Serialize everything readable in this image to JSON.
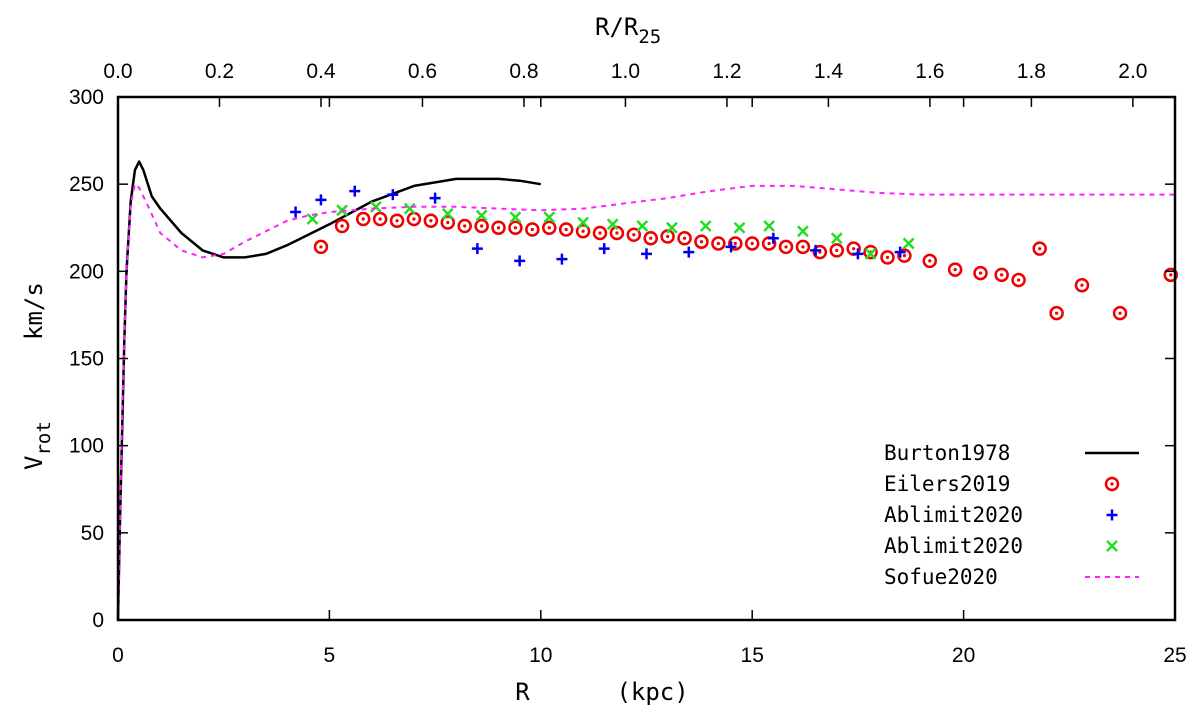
{
  "chart_data": {
    "type": "scatter",
    "title": "",
    "xlabel": "R      (kpc)",
    "ylabel_main": "V",
    "ylabel_sub": "rot",
    "ylabel_units": "km/s",
    "top_xlabel_main": "R/R",
    "top_xlabel_sub": "25",
    "xlim": [
      0,
      25
    ],
    "ylim": [
      0,
      300
    ],
    "top_xlim": [
      0,
      2.083
    ],
    "xticks": [
      0,
      5,
      10,
      15,
      20,
      25
    ],
    "yticks": [
      0,
      50,
      100,
      150,
      200,
      250,
      300
    ],
    "top_xticks": [
      "0.0",
      "0.2",
      "0.4",
      "0.6",
      "0.8",
      "1.0",
      "1.2",
      "1.4",
      "1.6",
      "1.8",
      "2.0"
    ],
    "grid": false,
    "legend_position": "bottom-right",
    "series": [
      {
        "name": "Burton1978",
        "style": "line",
        "color": "#000000",
        "x": [
          0.0,
          0.05,
          0.1,
          0.15,
          0.2,
          0.3,
          0.4,
          0.5,
          0.6,
          0.8,
          1.0,
          1.5,
          2.0,
          2.5,
          3.0,
          3.5,
          4.0,
          5.0,
          6.0,
          7.0,
          8.0,
          8.5,
          9.0,
          9.5,
          10.0
        ],
        "y": [
          0,
          60,
          110,
          160,
          200,
          240,
          258,
          263,
          258,
          243,
          236,
          222,
          212,
          208,
          208,
          210,
          215,
          227,
          240,
          249,
          253,
          253,
          253,
          252,
          250
        ]
      },
      {
        "name": "Eilers2019",
        "style": "circle",
        "color": "#ee0000",
        "x": [
          4.8,
          5.3,
          5.8,
          6.2,
          6.6,
          7.0,
          7.4,
          7.8,
          8.2,
          8.6,
          9.0,
          9.4,
          9.8,
          10.2,
          10.6,
          11.0,
          11.4,
          11.8,
          12.2,
          12.6,
          13.0,
          13.4,
          13.8,
          14.2,
          14.6,
          15.0,
          15.4,
          15.8,
          16.2,
          16.6,
          17.0,
          17.4,
          17.8,
          18.2,
          18.6,
          19.2,
          19.8,
          20.4,
          20.9,
          21.3,
          21.8,
          22.2,
          22.8,
          23.7,
          24.9
        ],
        "y": [
          214,
          226,
          230,
          230,
          229,
          230,
          229,
          228,
          226,
          226,
          225,
          225,
          224,
          225,
          224,
          223,
          222,
          222,
          221,
          219,
          220,
          219,
          217,
          216,
          216,
          216,
          216,
          214,
          214,
          211,
          212,
          213,
          211,
          208,
          209,
          206,
          201,
          199,
          198,
          195,
          213,
          176,
          192,
          176,
          198
        ]
      },
      {
        "name": "Ablimit2020",
        "style": "plus",
        "color": "#0000ee",
        "x": [
          4.2,
          4.8,
          5.6,
          6.5,
          7.5,
          8.5,
          9.5,
          10.5,
          11.5,
          12.5,
          13.5,
          14.5,
          15.5,
          16.5,
          17.5,
          18.5
        ],
        "y": [
          234,
          241,
          246,
          244,
          242,
          213,
          206,
          207,
          213,
          210,
          211,
          214,
          219,
          212,
          210,
          211
        ]
      },
      {
        "name": "Ablimit2020",
        "style": "cross",
        "color": "#22dd22",
        "x": [
          4.6,
          5.3,
          6.1,
          6.9,
          7.8,
          8.6,
          9.4,
          10.2,
          11.0,
          11.7,
          12.4,
          13.1,
          13.9,
          14.7,
          15.4,
          16.2,
          17.0,
          17.8,
          18.7
        ],
        "y": [
          230,
          235,
          237,
          236,
          233,
          232,
          231,
          231,
          228,
          227,
          226,
          225,
          226,
          225,
          226,
          223,
          219,
          210,
          216
        ]
      },
      {
        "name": "Sofue2020",
        "style": "dashed",
        "color": "#ff22ff",
        "x": [
          0.0,
          0.1,
          0.2,
          0.3,
          0.4,
          0.5,
          0.7,
          1.0,
          1.5,
          2.0,
          2.5,
          3.0,
          3.5,
          4.0,
          4.5,
          5.0,
          6.0,
          7.0,
          8.0,
          9.0,
          10.0,
          11.0,
          12.0,
          13.0,
          14.0,
          15.0,
          16.0,
          17.0,
          18.0,
          19.0,
          20.0,
          21.0,
          22.0,
          23.0,
          24.0,
          25.0
        ],
        "y": [
          0,
          120,
          200,
          238,
          250,
          248,
          238,
          222,
          212,
          208,
          210,
          217,
          223,
          229,
          232,
          234,
          236,
          237,
          237,
          236,
          235,
          236,
          239,
          242,
          246,
          249,
          249,
          247,
          245,
          244,
          244,
          244,
          244,
          244,
          244,
          244
        ]
      }
    ]
  }
}
